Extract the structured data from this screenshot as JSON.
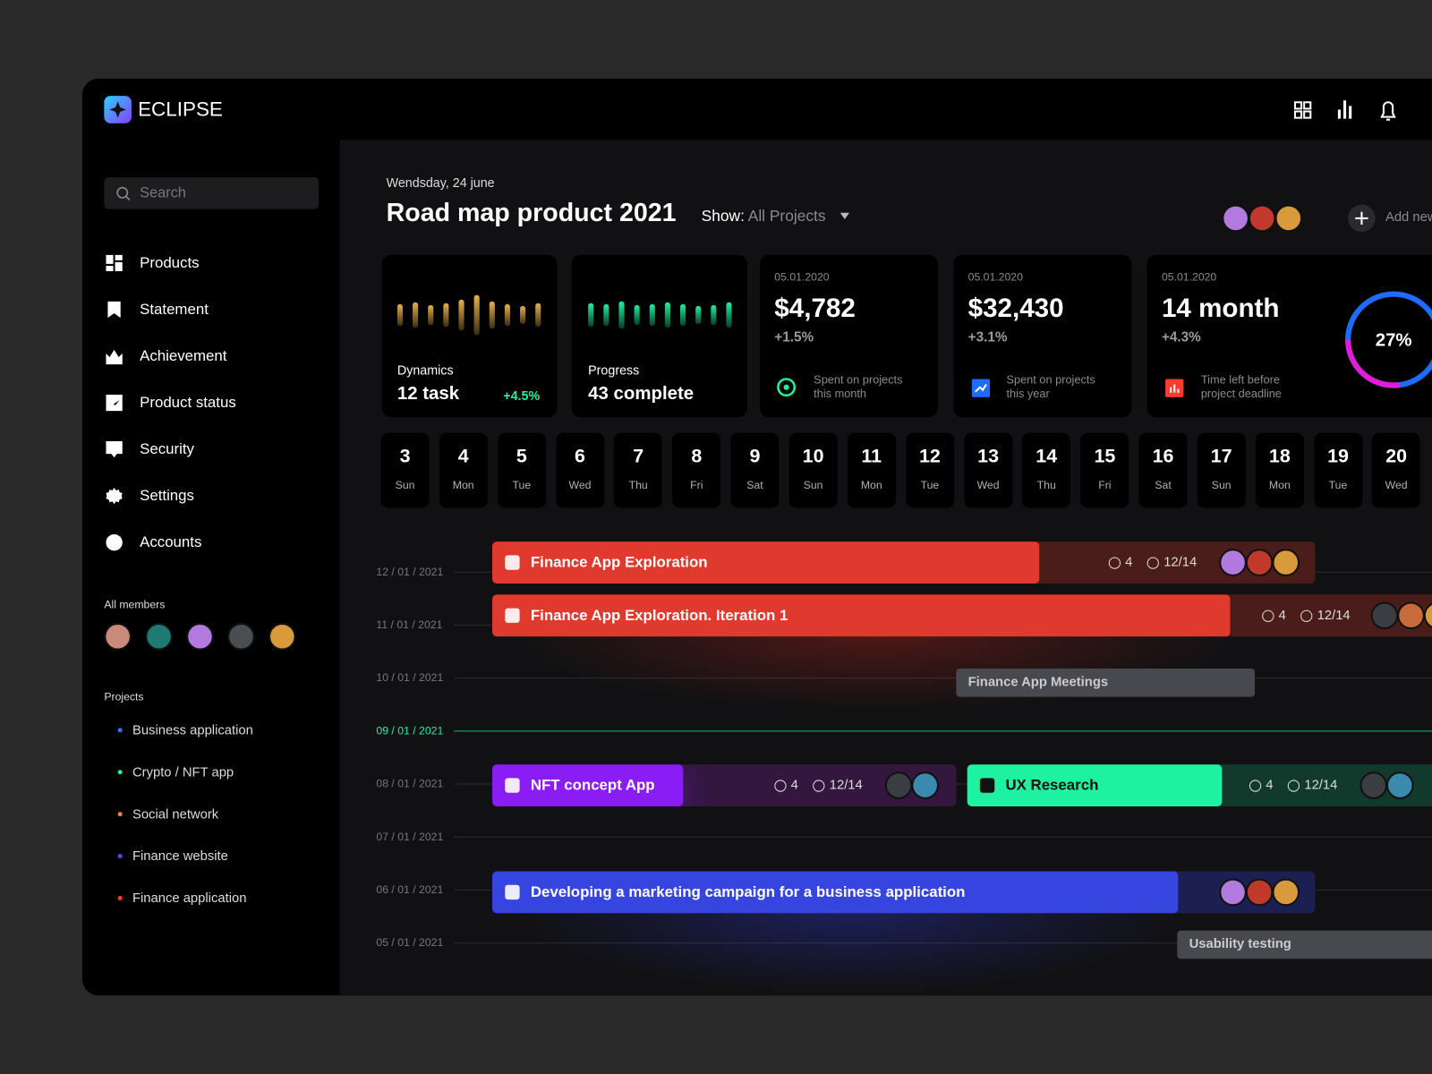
{
  "brand": "ECLIPSE",
  "search_placeholder": "Search",
  "nav": [
    "Products",
    "Statement",
    "Achievement",
    "Product status",
    "Security",
    "Settings",
    "Accounts"
  ],
  "members_title": "All members",
  "projects_title": "Projects",
  "projects": [
    {
      "name": "Business application",
      "color": "#3b6cff"
    },
    {
      "name": "Crypto / NFT app",
      "color": "#1ef2a0"
    },
    {
      "name": "Social network",
      "color": "#ff7a45"
    },
    {
      "name": "Finance website",
      "color": "#6b3cff"
    },
    {
      "name": "Finance application",
      "color": "#ff3b30"
    }
  ],
  "date": "Wendsday, 24 june",
  "title": "Road map product 2021",
  "show_label": "Show:",
  "show_value": "All Projects",
  "add_new": "Add new",
  "dynamics": {
    "label": "Dynamics",
    "value": "12 task",
    "change": "+4.5%",
    "color": "#e8b04a",
    "bars": [
      24,
      28,
      22,
      26,
      34,
      44,
      30,
      24,
      20,
      26
    ]
  },
  "progress": {
    "label": "Progress",
    "value": "43 complete",
    "color": "#1ef2a0",
    "bars": [
      26,
      24,
      30,
      22,
      24,
      28,
      24,
      20,
      22,
      28
    ]
  },
  "stats": [
    {
      "date": "05.01.2020",
      "value": "$4,782",
      "change": "+1.5%",
      "note": "Spent on projects this month"
    },
    {
      "date": "05.01.2020",
      "value": "$32,430",
      "change": "+3.1%",
      "note": "Spent on projects this year"
    }
  ],
  "deadline": {
    "date": "05.01.2020",
    "value": "14 month",
    "change": "+4.3%",
    "note": "Time left before project deadline",
    "percent": {
      "value": 27,
      "label": "27%"
    }
  },
  "days": [
    {
      "num": 3,
      "day": "Sun"
    },
    {
      "num": 4,
      "day": "Mon"
    },
    {
      "num": 5,
      "day": "Tue"
    },
    {
      "num": 6,
      "day": "Wed"
    },
    {
      "num": 7,
      "day": "Thu"
    },
    {
      "num": 8,
      "day": "Fri"
    },
    {
      "num": 9,
      "day": "Sat"
    },
    {
      "num": 10,
      "day": "Sun"
    },
    {
      "num": 11,
      "day": "Mon"
    },
    {
      "num": 12,
      "day": "Tue"
    },
    {
      "num": 13,
      "day": "Wed"
    },
    {
      "num": 14,
      "day": "Thu"
    },
    {
      "num": 15,
      "day": "Fri"
    },
    {
      "num": 16,
      "day": "Sat"
    },
    {
      "num": 17,
      "day": "Sun"
    },
    {
      "num": 18,
      "day": "Mon"
    },
    {
      "num": 19,
      "day": "Tue"
    },
    {
      "num": 20,
      "day": "Wed"
    }
  ],
  "timeline": [
    {
      "label": "12 / 01 / 2021"
    },
    {
      "label": "11 / 01 / 2021"
    },
    {
      "label": "10 / 01 / 2021"
    },
    {
      "label": "09 / 01 / 2021",
      "today": true
    },
    {
      "label": "08 / 01 / 2021"
    },
    {
      "label": "07 / 01 / 2021"
    },
    {
      "label": "06 / 01 / 2021"
    },
    {
      "label": "05 / 01 / 2021"
    }
  ],
  "tasks": [
    {
      "name": "Finance App Exploration",
      "attachments": 4,
      "checks": "12/14"
    },
    {
      "name": "Finance App Exploration. Iteration 1",
      "attachments": 4,
      "checks": "12/14"
    },
    {
      "name": "NFT concept App",
      "attachments": 4,
      "checks": "12/14"
    },
    {
      "name": "UX Research",
      "attachments": 4,
      "checks": "12/14"
    },
    {
      "name": "Developing a marketing campaign for a business application"
    }
  ],
  "events": [
    "Finance App Meetings",
    "Usability testing"
  ]
}
